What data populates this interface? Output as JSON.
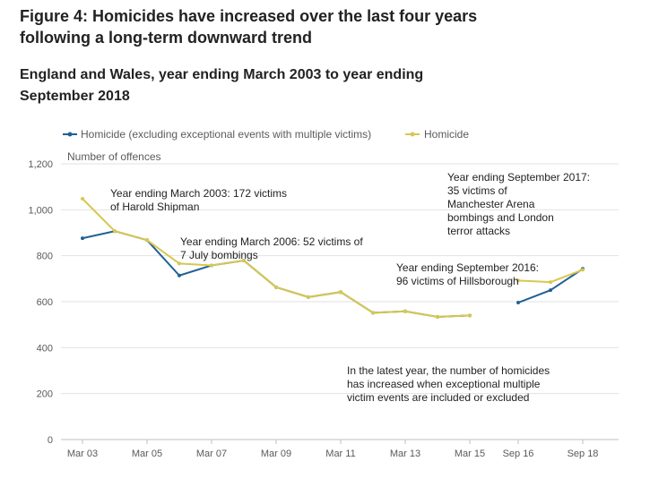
{
  "title_line1": "Figure 4: Homicides have increased over the last four years",
  "title_line2": "following a long-term downward trend",
  "subtitle_line1": "England and Wales, year ending March 2003 to year ending",
  "subtitle_line2": "September 2018",
  "chart_data": {
    "type": "line",
    "ylabel": "Number of offences",
    "ylim": [
      0,
      1200
    ],
    "y_ticks": [
      "0",
      "200",
      "400",
      "600",
      "800",
      "1,000",
      "1,200"
    ],
    "y_tick_values": [
      0,
      200,
      400,
      600,
      800,
      1000,
      1200
    ],
    "x_tick_labels": [
      "Mar 03",
      "Mar 05",
      "Mar 07",
      "Mar 09",
      "Mar 11",
      "Mar 13",
      "Mar 15",
      "Sep 16",
      "Sep 18"
    ],
    "x_tick_values": [
      2003,
      2005,
      2007,
      2009,
      2011,
      2013,
      2015,
      2016.5,
      2018.5
    ],
    "grid": "horizontal",
    "legend_position": "top",
    "series": [
      {
        "name": "Homicide (excluding exceptional events with multiple victims)",
        "color": "#206095",
        "segments": [
          {
            "x": [
              2003,
              2004,
              2005,
              2006,
              2007,
              2008,
              2009,
              2010,
              2011,
              2012,
              2013,
              2014,
              2015
            ],
            "y": [
              876,
              907,
              868,
              714,
              758,
              779,
              663,
              620,
              642,
              552,
              558,
              534,
              540
            ]
          },
          {
            "x": [
              2016.5,
              2017.5,
              2018.5
            ],
            "y": [
              596,
              650,
              743
            ]
          }
        ]
      },
      {
        "name": "Homicide",
        "color": "#d8c750",
        "segments": [
          {
            "x": [
              2003,
              2004,
              2005,
              2006,
              2007,
              2008,
              2009,
              2010,
              2011,
              2012,
              2013,
              2014,
              2015
            ],
            "y": [
              1048,
              907,
              868,
              766,
              758,
              779,
              663,
              620,
              642,
              552,
              558,
              534,
              540
            ]
          },
          {
            "x": [
              2016.5,
              2017.5,
              2018.5
            ],
            "y": [
              692,
              685,
              739
            ]
          }
        ]
      }
    ],
    "annotations": [
      {
        "lines": [
          "Year ending March 2003: 172 victims",
          "of Harold Shipman"
        ]
      },
      {
        "lines": [
          "Year ending March 2006: 52 victims of",
          "7 July bombings"
        ]
      },
      {
        "lines": [
          "Year ending September 2017:",
          "35 victims of",
          "Manchester Arena",
          "bombings and London",
          "terror attacks"
        ]
      },
      {
        "lines": [
          "Year ending September 2016:",
          "96 victims of Hillsborough"
        ]
      },
      {
        "lines": [
          "In the latest year, the number of homicides",
          "has increased when exceptional multiple",
          "victim events are included or excluded"
        ]
      }
    ]
  }
}
